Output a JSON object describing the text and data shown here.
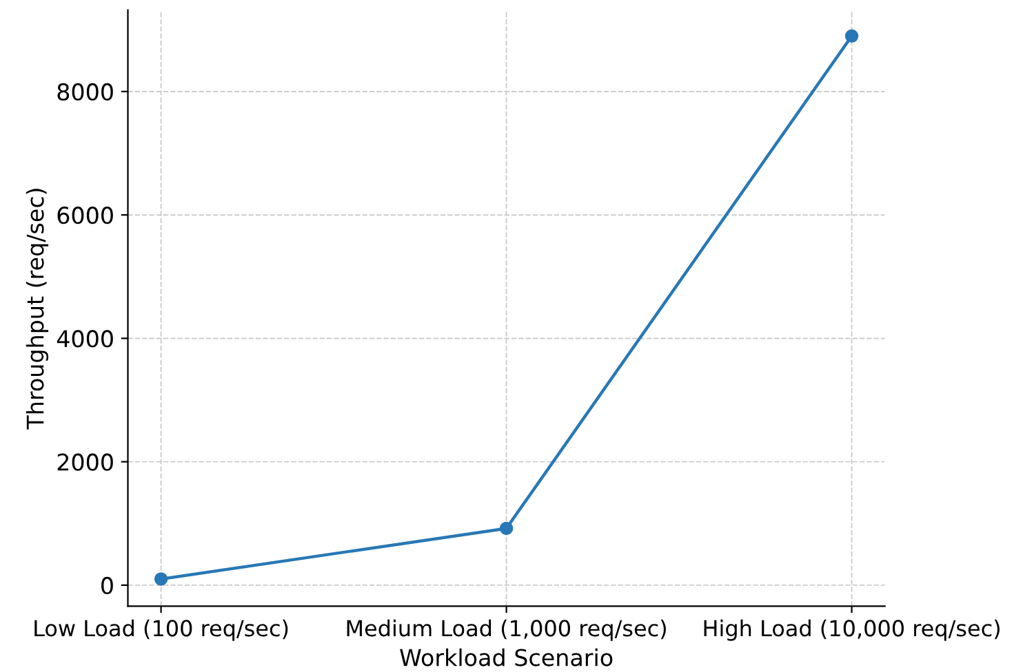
{
  "chart_data": {
    "type": "line",
    "xlabel": "Workload Scenario",
    "ylabel": "Throughput (req/sec)",
    "categories": [
      "Low Load (100 req/sec)",
      "Medium Load (1,000 req/sec)",
      "High Load (10,000 req/sec)"
    ],
    "series": [
      {
        "color": "#2878b5",
        "values": [
          100,
          920,
          8900
        ]
      }
    ],
    "ylim": [
      -340,
      9320
    ],
    "yticks": [
      0,
      2000,
      4000,
      6000,
      8000
    ],
    "grid": true,
    "marker": "circle",
    "line_style": "solid"
  }
}
